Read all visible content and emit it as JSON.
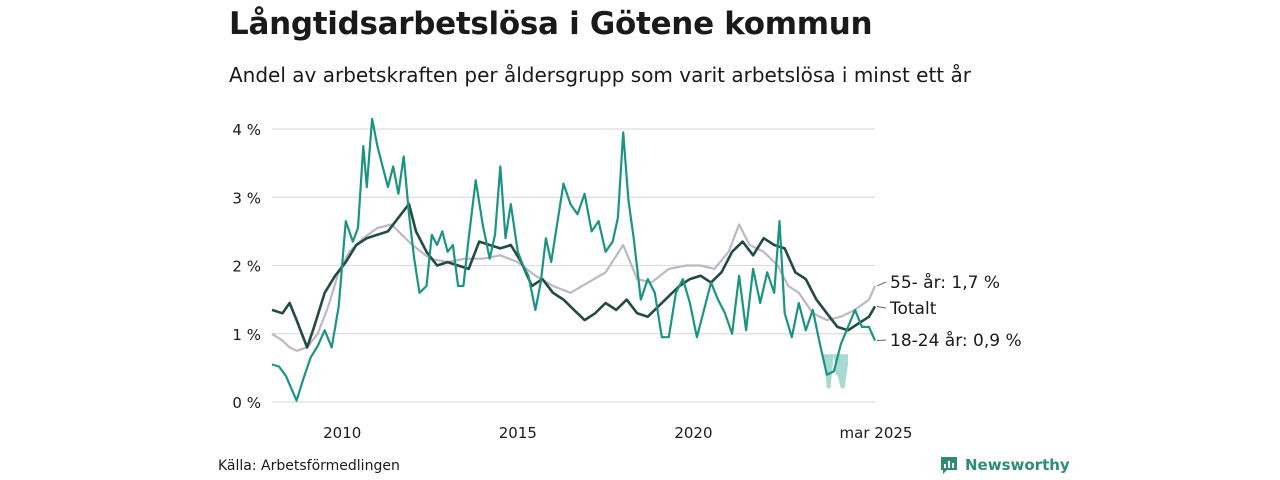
{
  "title": "Långtidsarbetslösa i Götene kommun",
  "subtitle": "Andel av arbetskraften per åldersgrupp som varit arbetslösa i minst ett år",
  "source": "Källa: Arbetsförmedlingen",
  "brand": "Newsworthy",
  "colors": {
    "young": "#1b9481",
    "total": "#234a43",
    "old": "#bdb8c6",
    "band": "#8dccc3",
    "grid": "#dddddd",
    "text": "#1a1a1a",
    "brand": "#2f8c7a"
  },
  "chart_data": {
    "type": "line",
    "ylim": [
      0,
      4
    ],
    "yticks": [
      {
        "value": 0,
        "label": "0 %"
      },
      {
        "value": 1,
        "label": "1 %"
      },
      {
        "value": 2,
        "label": "2 %"
      },
      {
        "value": 3,
        "label": "3 %"
      },
      {
        "value": 4,
        "label": "4 %"
      }
    ],
    "xlim": [
      2008.0,
      2025.17
    ],
    "xticks": [
      {
        "value": 2010,
        "label": "2010"
      },
      {
        "value": 2015,
        "label": "2015"
      },
      {
        "value": 2020,
        "label": "2020"
      },
      {
        "value": 2025.17,
        "label": "mar 2025"
      }
    ],
    "series": [
      {
        "key": "old",
        "name": "55- år",
        "label": "55- år: 1,7 %",
        "points": [
          [
            2008.0,
            1.0
          ],
          [
            2008.3,
            0.9
          ],
          [
            2008.5,
            0.8
          ],
          [
            2008.7,
            0.75
          ],
          [
            2009.0,
            0.8
          ],
          [
            2009.3,
            1.0
          ],
          [
            2009.6,
            1.4
          ],
          [
            2009.9,
            1.9
          ],
          [
            2010.2,
            2.2
          ],
          [
            2010.6,
            2.4
          ],
          [
            2011.0,
            2.55
          ],
          [
            2011.4,
            2.6
          ],
          [
            2011.7,
            2.45
          ],
          [
            2012.0,
            2.3
          ],
          [
            2012.5,
            2.1
          ],
          [
            2013.0,
            2.05
          ],
          [
            2013.5,
            2.1
          ],
          [
            2014.0,
            2.1
          ],
          [
            2014.5,
            2.15
          ],
          [
            2015.0,
            2.05
          ],
          [
            2015.5,
            1.85
          ],
          [
            2016.0,
            1.7
          ],
          [
            2016.5,
            1.6
          ],
          [
            2017.0,
            1.75
          ],
          [
            2017.5,
            1.9
          ],
          [
            2018.0,
            2.3
          ],
          [
            2018.4,
            1.8
          ],
          [
            2018.8,
            1.75
          ],
          [
            2019.3,
            1.95
          ],
          [
            2019.8,
            2.0
          ],
          [
            2020.2,
            2.0
          ],
          [
            2020.6,
            1.95
          ],
          [
            2021.0,
            2.2
          ],
          [
            2021.3,
            2.6
          ],
          [
            2021.6,
            2.3
          ],
          [
            2022.0,
            2.2
          ],
          [
            2022.4,
            2.0
          ],
          [
            2022.7,
            1.7
          ],
          [
            2023.0,
            1.6
          ],
          [
            2023.4,
            1.3
          ],
          [
            2023.8,
            1.2
          ],
          [
            2024.2,
            1.25
          ],
          [
            2024.6,
            1.35
          ],
          [
            2025.0,
            1.5
          ],
          [
            2025.17,
            1.7
          ]
        ]
      },
      {
        "key": "total",
        "name": "Totalt",
        "label": "Totalt",
        "points": [
          [
            2008.0,
            1.35
          ],
          [
            2008.3,
            1.3
          ],
          [
            2008.5,
            1.45
          ],
          [
            2008.7,
            1.2
          ],
          [
            2009.0,
            0.8
          ],
          [
            2009.2,
            1.1
          ],
          [
            2009.5,
            1.6
          ],
          [
            2009.8,
            1.85
          ],
          [
            2010.1,
            2.05
          ],
          [
            2010.4,
            2.3
          ],
          [
            2010.7,
            2.4
          ],
          [
            2011.0,
            2.45
          ],
          [
            2011.3,
            2.5
          ],
          [
            2011.6,
            2.7
          ],
          [
            2011.9,
            2.9
          ],
          [
            2012.1,
            2.5
          ],
          [
            2012.4,
            2.2
          ],
          [
            2012.7,
            2.0
          ],
          [
            2013.0,
            2.05
          ],
          [
            2013.3,
            2.0
          ],
          [
            2013.6,
            1.95
          ],
          [
            2013.9,
            2.35
          ],
          [
            2014.2,
            2.3
          ],
          [
            2014.5,
            2.25
          ],
          [
            2014.8,
            2.3
          ],
          [
            2015.1,
            2.05
          ],
          [
            2015.4,
            1.7
          ],
          [
            2015.7,
            1.8
          ],
          [
            2016.0,
            1.6
          ],
          [
            2016.3,
            1.5
          ],
          [
            2016.6,
            1.35
          ],
          [
            2016.9,
            1.2
          ],
          [
            2017.2,
            1.3
          ],
          [
            2017.5,
            1.45
          ],
          [
            2017.8,
            1.35
          ],
          [
            2018.1,
            1.5
          ],
          [
            2018.4,
            1.3
          ],
          [
            2018.7,
            1.25
          ],
          [
            2019.0,
            1.4
          ],
          [
            2019.3,
            1.55
          ],
          [
            2019.6,
            1.7
          ],
          [
            2019.9,
            1.8
          ],
          [
            2020.2,
            1.85
          ],
          [
            2020.5,
            1.75
          ],
          [
            2020.8,
            1.9
          ],
          [
            2021.1,
            2.2
          ],
          [
            2021.4,
            2.35
          ],
          [
            2021.7,
            2.15
          ],
          [
            2022.0,
            2.4
          ],
          [
            2022.3,
            2.3
          ],
          [
            2022.6,
            2.25
          ],
          [
            2022.9,
            1.9
          ],
          [
            2023.2,
            1.8
          ],
          [
            2023.5,
            1.5
          ],
          [
            2023.8,
            1.3
          ],
          [
            2024.1,
            1.1
          ],
          [
            2024.4,
            1.05
          ],
          [
            2024.7,
            1.15
          ],
          [
            2025.0,
            1.25
          ],
          [
            2025.17,
            1.4
          ]
        ]
      },
      {
        "key": "young",
        "name": "18-24 år",
        "label": "18-24 år: 0,9 %",
        "points": [
          [
            2008.0,
            0.55
          ],
          [
            2008.2,
            0.52
          ],
          [
            2008.4,
            0.38
          ],
          [
            2008.55,
            0.2
          ],
          [
            2008.7,
            0.02
          ],
          [
            2008.9,
            0.35
          ],
          [
            2009.1,
            0.65
          ],
          [
            2009.3,
            0.82
          ],
          [
            2009.5,
            1.05
          ],
          [
            2009.7,
            0.8
          ],
          [
            2009.9,
            1.4
          ],
          [
            2010.1,
            2.65
          ],
          [
            2010.3,
            2.35
          ],
          [
            2010.45,
            2.55
          ],
          [
            2010.6,
            3.75
          ],
          [
            2010.7,
            3.15
          ],
          [
            2010.85,
            4.15
          ],
          [
            2011.0,
            3.75
          ],
          [
            2011.15,
            3.45
          ],
          [
            2011.3,
            3.15
          ],
          [
            2011.45,
            3.45
          ],
          [
            2011.6,
            3.05
          ],
          [
            2011.75,
            3.6
          ],
          [
            2011.9,
            2.75
          ],
          [
            2012.05,
            2.1
          ],
          [
            2012.2,
            1.6
          ],
          [
            2012.4,
            1.7
          ],
          [
            2012.55,
            2.45
          ],
          [
            2012.7,
            2.3
          ],
          [
            2012.85,
            2.5
          ],
          [
            2013.0,
            2.2
          ],
          [
            2013.15,
            2.3
          ],
          [
            2013.3,
            1.7
          ],
          [
            2013.45,
            1.7
          ],
          [
            2013.6,
            2.4
          ],
          [
            2013.8,
            3.25
          ],
          [
            2014.0,
            2.6
          ],
          [
            2014.2,
            2.1
          ],
          [
            2014.35,
            2.45
          ],
          [
            2014.5,
            3.45
          ],
          [
            2014.65,
            2.4
          ],
          [
            2014.8,
            2.9
          ],
          [
            2015.0,
            2.2
          ],
          [
            2015.15,
            2.0
          ],
          [
            2015.3,
            1.85
          ],
          [
            2015.5,
            1.35
          ],
          [
            2015.65,
            1.75
          ],
          [
            2015.8,
            2.4
          ],
          [
            2015.95,
            2.05
          ],
          [
            2016.1,
            2.55
          ],
          [
            2016.3,
            3.2
          ],
          [
            2016.5,
            2.9
          ],
          [
            2016.7,
            2.75
          ],
          [
            2016.9,
            3.05
          ],
          [
            2017.1,
            2.5
          ],
          [
            2017.3,
            2.65
          ],
          [
            2017.5,
            2.2
          ],
          [
            2017.7,
            2.35
          ],
          [
            2017.85,
            2.7
          ],
          [
            2018.0,
            3.95
          ],
          [
            2018.15,
            2.95
          ],
          [
            2018.3,
            2.4
          ],
          [
            2018.5,
            1.5
          ],
          [
            2018.7,
            1.8
          ],
          [
            2018.9,
            1.6
          ],
          [
            2019.1,
            0.95
          ],
          [
            2019.3,
            0.95
          ],
          [
            2019.5,
            1.6
          ],
          [
            2019.7,
            1.8
          ],
          [
            2019.9,
            1.45
          ],
          [
            2020.1,
            0.95
          ],
          [
            2020.3,
            1.35
          ],
          [
            2020.5,
            1.75
          ],
          [
            2020.7,
            1.5
          ],
          [
            2020.9,
            1.3
          ],
          [
            2021.1,
            1.0
          ],
          [
            2021.3,
            1.85
          ],
          [
            2021.5,
            1.05
          ],
          [
            2021.7,
            1.95
          ],
          [
            2021.9,
            1.45
          ],
          [
            2022.1,
            1.9
          ],
          [
            2022.3,
            1.6
          ],
          [
            2022.45,
            2.65
          ],
          [
            2022.6,
            1.3
          ],
          [
            2022.8,
            0.95
          ],
          [
            2023.0,
            1.45
          ],
          [
            2023.2,
            1.05
          ],
          [
            2023.4,
            1.35
          ],
          [
            2023.6,
            0.85
          ],
          [
            2023.8,
            0.4
          ],
          [
            2024.0,
            0.45
          ],
          [
            2024.2,
            0.85
          ],
          [
            2024.4,
            1.1
          ],
          [
            2024.6,
            1.35
          ],
          [
            2024.8,
            1.1
          ],
          [
            2025.0,
            1.1
          ],
          [
            2025.17,
            0.9
          ]
        ]
      }
    ],
    "band": {
      "series": "young",
      "low": [
        [
          2023.7,
          0.7
        ],
        [
          2023.8,
          0.2
        ],
        [
          2023.9,
          0.2
        ],
        [
          2024.0,
          0.7
        ],
        [
          2024.05,
          0.4
        ],
        [
          2024.1,
          0.4
        ],
        [
          2024.2,
          0.2
        ],
        [
          2024.3,
          0.2
        ],
        [
          2024.4,
          0.55
        ]
      ],
      "high": [
        [
          2023.7,
          0.7
        ],
        [
          2023.8,
          0.7
        ],
        [
          2023.9,
          0.7
        ],
        [
          2024.0,
          0.7
        ],
        [
          2024.05,
          0.7
        ],
        [
          2024.1,
          0.7
        ],
        [
          2024.2,
          0.7
        ],
        [
          2024.3,
          0.7
        ],
        [
          2024.4,
          0.7
        ]
      ]
    }
  }
}
